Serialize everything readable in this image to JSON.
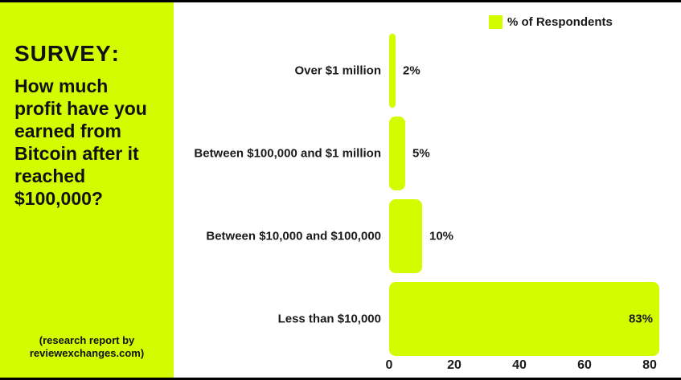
{
  "colors": {
    "accent": "#d3fc01",
    "text": "#111111",
    "chart_text": "#1a1a1a",
    "background": "#ffffff",
    "frame": "#000000"
  },
  "sidebar": {
    "heading": "SURVEY",
    "heading_colon": ":",
    "title_lines": [
      "How much",
      "profit have you",
      "earned from",
      "Bitcoin after it",
      "reached",
      "$100,000?"
    ],
    "caption_lines": [
      "(research report by",
      "reviewexchanges.com)"
    ]
  },
  "chart_data": {
    "type": "bar",
    "orientation": "horizontal",
    "title": "",
    "legend": {
      "label": "% of Respondents",
      "position": "top-right",
      "swatch_color": "#d3fc01"
    },
    "categories": [
      "Over $1 million",
      "Between $100,000 and $1 million",
      "Between $10,000 and $100,000",
      "Less than $10,000"
    ],
    "values": [
      2,
      5,
      10,
      83
    ],
    "value_labels": [
      "2%",
      "5%",
      "10%",
      "83%"
    ],
    "xlabel": "",
    "ylabel": "",
    "xlim": [
      0,
      85
    ],
    "x_ticks": [
      0,
      20,
      40,
      60,
      80
    ],
    "grid": false,
    "bar_color": "#d3fc01"
  }
}
